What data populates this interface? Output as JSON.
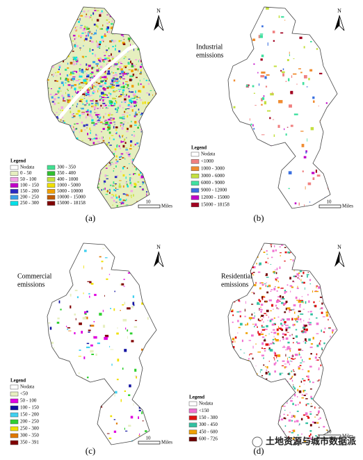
{
  "panels": [
    {
      "label": "(a)",
      "north": "N",
      "scale": "10",
      "scale_unit": "Miles",
      "legend": {
        "title": "Legend",
        "items": [
          {
            "label": "Nodata",
            "color": "#ffffff"
          },
          {
            "label": "0 - 50",
            "color": "#e6efbf"
          },
          {
            "label": "50 - 100",
            "color": "#f2a3e6"
          },
          {
            "label": "100 - 150",
            "color": "#c000c8"
          },
          {
            "label": "150 - 200",
            "color": "#2a2ac0"
          },
          {
            "label": "200 - 250",
            "color": "#3aa0e8"
          },
          {
            "label": "250 - 300",
            "color": "#00e0e8"
          },
          {
            "label": "300 - 350",
            "color": "#40e090"
          },
          {
            "label": "350 - 400",
            "color": "#30c030"
          },
          {
            "label": "400 - 1000",
            "color": "#c4e040"
          },
          {
            "label": "1000 - 5000",
            "color": "#f0e000"
          },
          {
            "label": "5000 - 10000",
            "color": "#f0a000"
          },
          {
            "label": "10000 - 15000",
            "color": "#c05a00"
          },
          {
            "label": "15000 - 18158",
            "color": "#800000"
          }
        ]
      }
    },
    {
      "label": "(b)",
      "title_lines": [
        "Industrial",
        "emissions"
      ],
      "north": "N",
      "scale": "10",
      "scale_unit": "Miles",
      "legend": {
        "title": "Legend",
        "items": [
          {
            "label": "Nodata",
            "color": "#ffffff"
          },
          {
            "label": "<1000",
            "color": "#f08080"
          },
          {
            "label": "1000 - 3000",
            "color": "#f08c30"
          },
          {
            "label": "3000 - 6000",
            "color": "#c4e040"
          },
          {
            "label": "6000 - 9000",
            "color": "#40e0a0"
          },
          {
            "label": "9000 - 12000",
            "color": "#3a70e0"
          },
          {
            "label": "12000 - 15000",
            "color": "#c000c8"
          },
          {
            "label": "15000 - 18158",
            "color": "#a00020"
          }
        ]
      }
    },
    {
      "label": "(c)",
      "title_lines": [
        "Commercial",
        "emissions"
      ],
      "north": "N",
      "scale": "10",
      "scale_unit": "Miles",
      "legend": {
        "title": "Legend",
        "items": [
          {
            "label": "Nodata",
            "color": "#ffffff"
          },
          {
            "label": "<50",
            "color": "#e6efbf"
          },
          {
            "label": "50  -  100",
            "color": "#e000e0"
          },
          {
            "label": "100  -  150",
            "color": "#1010a0"
          },
          {
            "label": "150  -  200",
            "color": "#40d0f0"
          },
          {
            "label": "200  -  250",
            "color": "#30d030"
          },
          {
            "label": "250  -  300",
            "color": "#f0e000"
          },
          {
            "label": "300  -  350",
            "color": "#e07800"
          },
          {
            "label": "350  -  391",
            "color": "#800000"
          }
        ]
      }
    },
    {
      "label": "(d)",
      "title_lines": [
        "Residential",
        "emissions"
      ],
      "north": "N",
      "scale": "10",
      "scale_unit": "Miles",
      "legend": {
        "title": "Legend",
        "items": [
          {
            "label": "Nodata",
            "color": "#ffffff"
          },
          {
            "label": "<150",
            "color": "#f070d0"
          },
          {
            "label": "150 - 300",
            "color": "#e01010"
          },
          {
            "label": "300 - 450",
            "color": "#30c0a0"
          },
          {
            "label": "450 - 600",
            "color": "#f0a000"
          },
          {
            "label": "600 - 726",
            "color": "#700000"
          }
        ]
      }
    }
  ],
  "watermark": "土地资源与城市数据派"
}
